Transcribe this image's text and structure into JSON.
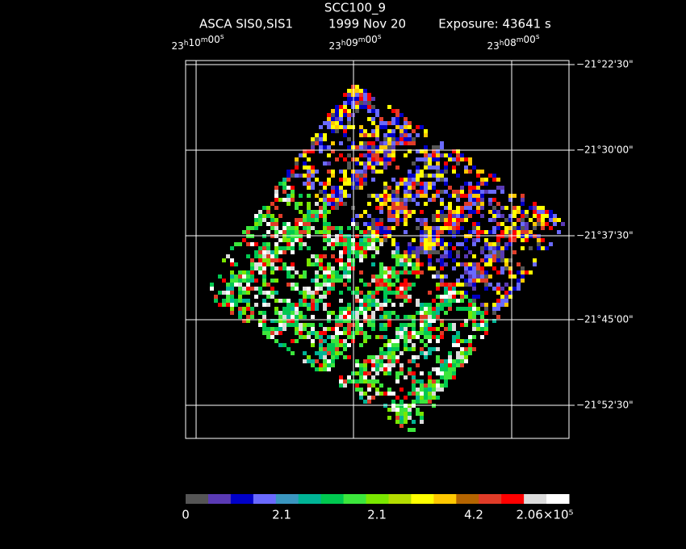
{
  "header": {
    "title": "SCC100_9",
    "instrument": "ASCA SIS0,SIS1",
    "date": "1999 Nov 20",
    "exposure": "Exposure: 43641 s"
  },
  "ra_labels": [
    "23h10m00s",
    "23h09m00s",
    "23h08m00s"
  ],
  "dec_labels": [
    "−21°22'30\"",
    "−21°30'00\"",
    "−21°37'30\"",
    "−21°45'00\"",
    "−21°52'30\""
  ],
  "colorbar": {
    "colors": [
      "#555555",
      "#5a3ab4",
      "#0000c8",
      "#6a6aff",
      "#3a96c0",
      "#00b496",
      "#00c850",
      "#3ce63c",
      "#7ae600",
      "#b4dc00",
      "#ffff00",
      "#ffc800",
      "#b46400",
      "#e03c28",
      "#ff0000",
      "#dcdcdc",
      "#ffffff"
    ],
    "labels": [
      "0",
      "2.1",
      "2.1",
      "4.2",
      "2.06×10⁵"
    ]
  }
}
